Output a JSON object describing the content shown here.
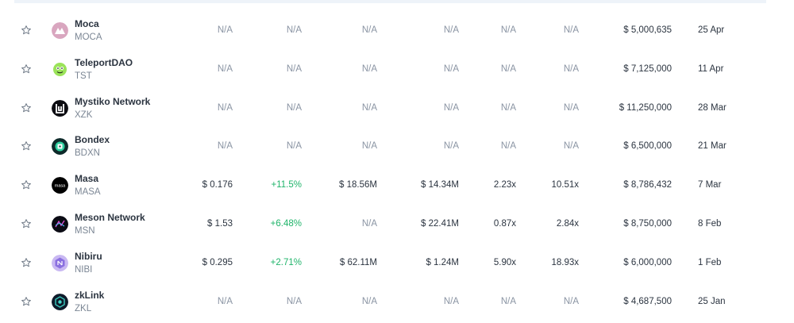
{
  "rows": [
    {
      "name": "Moca",
      "symbol": "MOCA",
      "price": "N/A",
      "change": "N/A",
      "market_cap": "N/A",
      "fdv": "N/A",
      "roi_1": "N/A",
      "roi_2": "N/A",
      "raise": "$ 5,000,635",
      "date": "25 Apr",
      "logo": "moca-logo-icon"
    },
    {
      "name": "TeleportDAO",
      "symbol": "TST",
      "price": "N/A",
      "change": "N/A",
      "market_cap": "N/A",
      "fdv": "N/A",
      "roi_1": "N/A",
      "roi_2": "N/A",
      "raise": "$ 7,125,000",
      "date": "11 Apr",
      "logo": "teleportdao-logo-icon"
    },
    {
      "name": "Mystiko Network",
      "symbol": "XZK",
      "price": "N/A",
      "change": "N/A",
      "market_cap": "N/A",
      "fdv": "N/A",
      "roi_1": "N/A",
      "roi_2": "N/A",
      "raise": "$ 11,250,000",
      "date": "28 Mar",
      "logo": "mystiko-logo-icon"
    },
    {
      "name": "Bondex",
      "symbol": "BDXN",
      "price": "N/A",
      "change": "N/A",
      "market_cap": "N/A",
      "fdv": "N/A",
      "roi_1": "N/A",
      "roi_2": "N/A",
      "raise": "$ 6,500,000",
      "date": "21 Mar",
      "logo": "bondex-logo-icon"
    },
    {
      "name": "Masa",
      "symbol": "MASA",
      "price": "$ 0.176",
      "change": "+11.5%",
      "market_cap": "$ 18.56M",
      "fdv": "$ 14.34M",
      "roi_1": "2.23x",
      "roi_2": "10.51x",
      "raise": "$ 8,786,432",
      "date": "7 Mar",
      "logo": "masa-logo-icon",
      "logo_text": "masa"
    },
    {
      "name": "Meson Network",
      "symbol": "MSN",
      "price": "$ 1.53",
      "change": "+6.48%",
      "market_cap": "N/A",
      "fdv": "$ 22.41M",
      "roi_1": "0.87x",
      "roi_2": "2.84x",
      "raise": "$ 8,750,000",
      "date": "8 Feb",
      "logo": "meson-logo-icon"
    },
    {
      "name": "Nibiru",
      "symbol": "NIBI",
      "price": "$ 0.295",
      "change": "+2.71%",
      "market_cap": "$ 62.11M",
      "fdv": "$ 1.24M",
      "roi_1": "5.90x",
      "roi_2": "18.93x",
      "raise": "$ 6,000,000",
      "date": "1 Feb",
      "logo": "nibiru-logo-icon"
    },
    {
      "name": "zkLink",
      "symbol": "ZKL",
      "price": "N/A",
      "change": "N/A",
      "market_cap": "N/A",
      "fdv": "N/A",
      "roi_1": "N/A",
      "roi_2": "N/A",
      "raise": "$ 4,687,500",
      "date": "25 Jan",
      "logo": "zklink-logo-icon"
    }
  ],
  "colors": {
    "positive": "#1fb46a",
    "muted": "#8a94a3",
    "text": "#2b3440"
  }
}
